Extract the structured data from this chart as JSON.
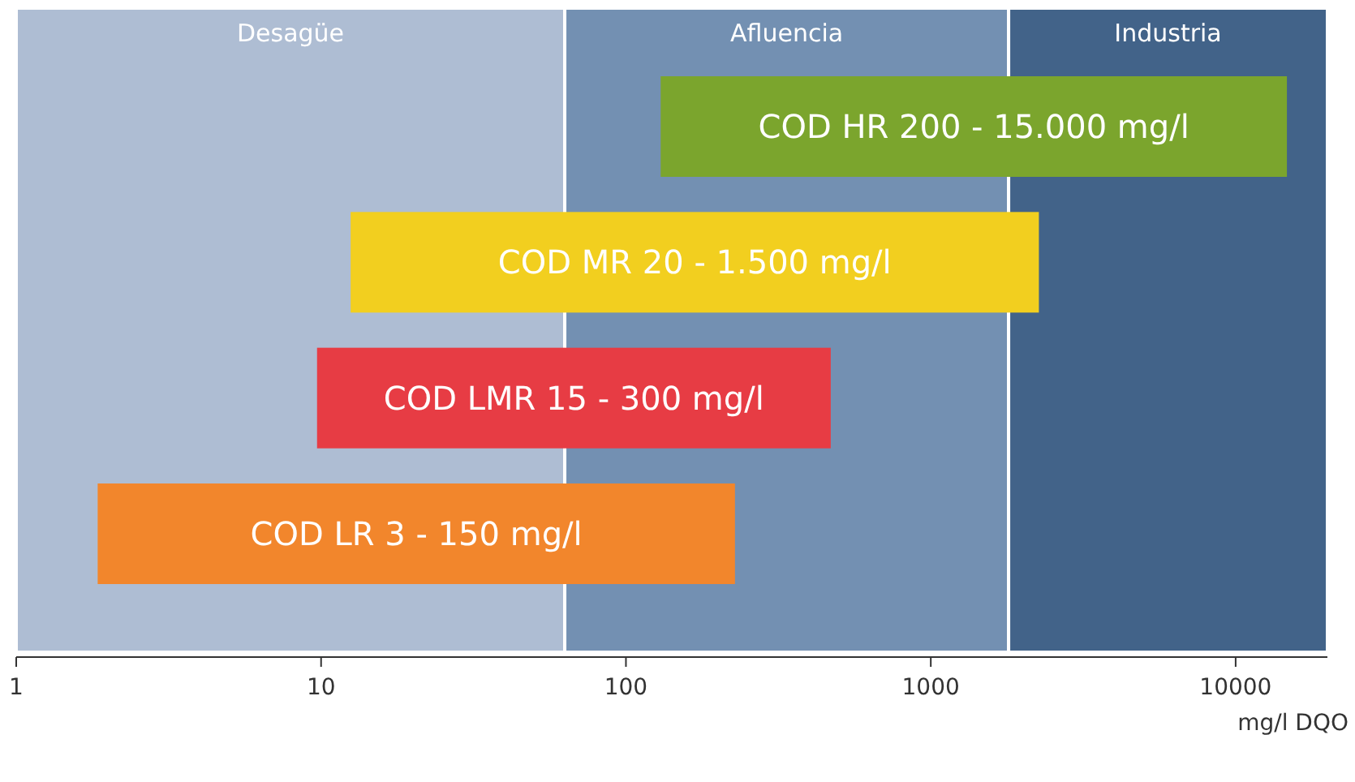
{
  "chart_data": {
    "type": "bar",
    "orientation": "horizontal",
    "log": "x",
    "xlabel": "mg/l DQO",
    "categories": [
      "COD HR 200 - 15.000 mg/l",
      "COD MR 20 - 1.500 mg/l",
      "COD LMR 15 - 300 mg/l",
      "COD LR 3 - 150 mg/l"
    ],
    "base": [
      130,
      12.5,
      9.7,
      1.85
    ],
    "values": [
      14600,
      2250,
      460,
      226
    ],
    "colors": [
      "#7ba52d",
      "#f2cf1f",
      "#e73c44",
      "#f2862c"
    ],
    "xlim": [
      1,
      20000
    ],
    "xticks": [
      1,
      10,
      100,
      1000,
      10000
    ],
    "bands": [
      {
        "axis": "x",
        "from": 1,
        "to": 63,
        "label": "Desagüe",
        "color": "#aebdd3"
      },
      {
        "axis": "x",
        "from": 63,
        "to": 1800,
        "label": "Afluencia",
        "color": "#7390b2"
      },
      {
        "axis": "x",
        "from": 1800,
        "to": 20000,
        "label": "Industria",
        "color": "#426389"
      }
    ],
    "grid": false
  }
}
